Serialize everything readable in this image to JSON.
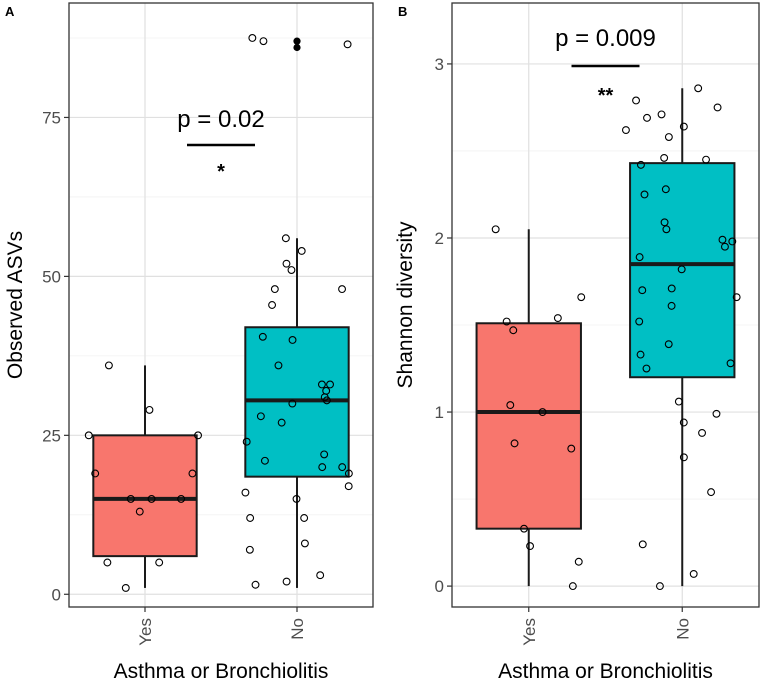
{
  "chart_data": [
    {
      "type": "box",
      "panel_label": "A",
      "ylabel": "Observed ASVs",
      "xlabel": "Asthma or Bronchiolitis",
      "categories": [
        "Yes",
        "No"
      ],
      "ylim": [
        -2,
        93
      ],
      "yticks": [
        0,
        25,
        50,
        75
      ],
      "ytick_labels": [
        "0",
        "25",
        "50",
        "75"
      ],
      "annotation": {
        "pvalue_text": "p =  0.02",
        "stars": "*"
      },
      "boxes": [
        {
          "category": "Yes",
          "color": "#F8766D",
          "whisker_low": 1,
          "q1": 6,
          "median": 15,
          "q3": 25,
          "whisker_high": 36,
          "outliers": []
        },
        {
          "category": "No",
          "color": "#00BFC4",
          "whisker_low": 1,
          "q1": 18.5,
          "median": 30.5,
          "q3": 42,
          "whisker_high": 56,
          "outliers": [
            87,
            86
          ]
        }
      ],
      "points": [
        {
          "category": "Yes",
          "values": [
            25,
            19,
            19,
            15,
            15,
            13,
            5,
            5,
            1,
            29,
            25,
            15,
            36
          ]
        },
        {
          "category": "No",
          "values": [
            87.5,
            87,
            86.5,
            56,
            54,
            52,
            51,
            48,
            48,
            45.5,
            40.5,
            40,
            36,
            33,
            33,
            32,
            31,
            30.5,
            30,
            28,
            27,
            24,
            22,
            21,
            20,
            20,
            19,
            17,
            16,
            15,
            12,
            12,
            8,
            7,
            3,
            2,
            1.5
          ]
        }
      ]
    },
    {
      "type": "box",
      "panel_label": "B",
      "ylabel": "Shannon diversity",
      "xlabel": "Asthma or Bronchiolitis",
      "categories": [
        "Yes",
        "No"
      ],
      "ylim": [
        -0.12,
        3.35
      ],
      "yticks": [
        0,
        1,
        2,
        3
      ],
      "ytick_labels": [
        "0",
        "1",
        "2",
        "3"
      ],
      "annotation": {
        "pvalue_text": "p =  0.009",
        "stars": "**"
      },
      "boxes": [
        {
          "category": "Yes",
          "color": "#F8766D",
          "whisker_low": 0,
          "q1": 0.33,
          "median": 1.0,
          "q3": 1.51,
          "whisker_high": 2.05,
          "outliers": []
        },
        {
          "category": "No",
          "color": "#00BFC4",
          "whisker_low": 0,
          "q1": 1.2,
          "median": 1.85,
          "q3": 2.43,
          "whisker_high": 2.86,
          "outliers": []
        }
      ],
      "points": [
        {
          "category": "Yes",
          "values": [
            2.05,
            1.66,
            1.54,
            1.52,
            1.47,
            1.04,
            1.0,
            0.82,
            0.79,
            0.33,
            0.23,
            0.14,
            0.0
          ]
        },
        {
          "category": "No",
          "values": [
            2.86,
            2.79,
            2.75,
            2.71,
            2.69,
            2.64,
            2.62,
            2.58,
            2.46,
            2.45,
            2.42,
            2.28,
            2.25,
            2.09,
            2.05,
            1.99,
            1.98,
            1.95,
            1.89,
            1.82,
            1.71,
            1.7,
            1.66,
            1.61,
            1.52,
            1.39,
            1.33,
            1.28,
            1.25,
            1.06,
            0.99,
            0.94,
            0.88,
            0.74,
            0.54,
            0.24,
            0.07,
            0.0
          ]
        }
      ]
    }
  ]
}
